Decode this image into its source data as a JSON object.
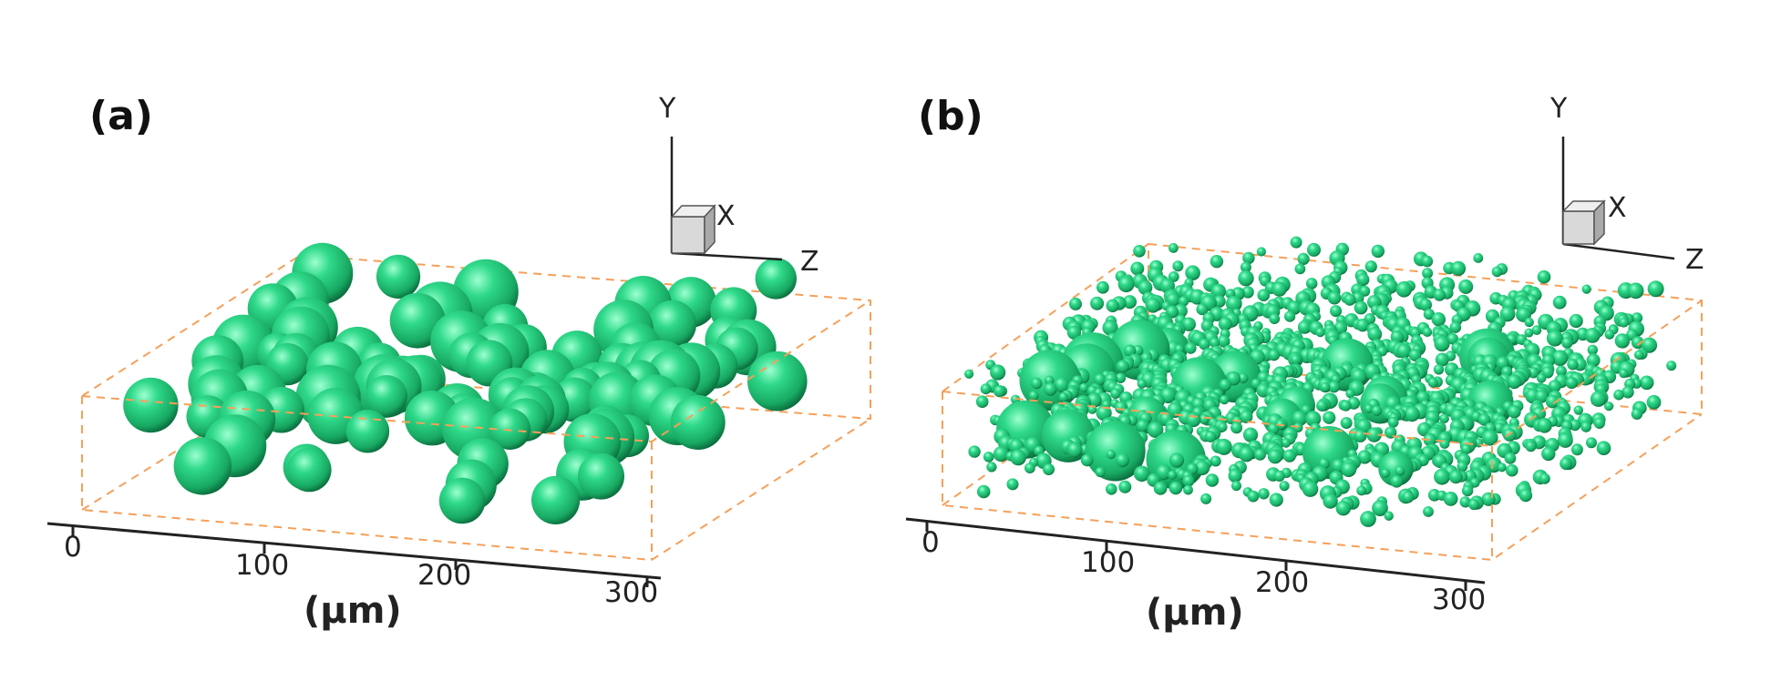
{
  "panels": [
    {
      "label": "(a)",
      "particles": "large",
      "ticks": [
        "0",
        "100",
        "200",
        "300"
      ],
      "unit": "(μm)",
      "axes": {
        "y": "Y",
        "x": "X",
        "z": "Z"
      }
    },
    {
      "label": "(b)",
      "particles": "mixed-small-large",
      "ticks": [
        "0",
        "100",
        "200",
        "300"
      ],
      "unit": "(μm)",
      "axes": {
        "y": "Y",
        "x": "X",
        "z": "Z"
      }
    }
  ],
  "colors": {
    "sphere": "#2ecc80",
    "sphere_highlight": "#7dffc0",
    "sphere_shadow": "#0b7d45",
    "box_edges": "#f5a05a",
    "axis": "#222222",
    "triad_cube": "#d9d9d9"
  }
}
